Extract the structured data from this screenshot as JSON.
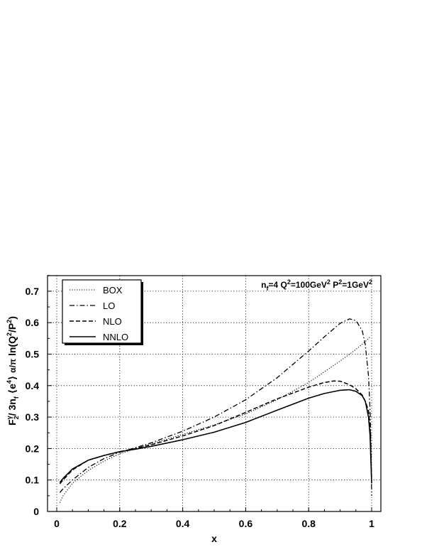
{
  "chart_data": {
    "type": "line",
    "xlabel": "x",
    "ylabel": "F₂^γ / 3n_f ⟨e⁴⟩ (α/π) ln(Q²/P²)",
    "annotation": "n_f=4 Q²=100GeV² P²=1GeV²",
    "xlim": [
      0,
      1
    ],
    "ylim": [
      0,
      0.75
    ],
    "x_ticks": [
      "0",
      "0.2",
      "0.4",
      "0.6",
      "0.8",
      "1"
    ],
    "y_ticks": [
      "0",
      "0.1",
      "0.2",
      "0.3",
      "0.4",
      "0.5",
      "0.6",
      "0.7"
    ],
    "grid": true,
    "legend_position": "top-left",
    "series": [
      {
        "name": "BOX",
        "style": "dotted",
        "x": [
          0.01,
          0.02,
          0.05,
          0.1,
          0.15,
          0.2,
          0.25,
          0.3,
          0.4,
          0.5,
          0.6,
          0.7,
          0.8,
          0.9,
          0.95,
          0.98,
          0.99,
          0.995
        ],
        "y": [
          0.028,
          0.05,
          0.09,
          0.13,
          0.16,
          0.183,
          0.2,
          0.215,
          0.245,
          0.275,
          0.31,
          0.355,
          0.41,
          0.478,
          0.515,
          0.54,
          0.55,
          0.555
        ]
      },
      {
        "name": "LO",
        "style": "dash-dot",
        "x": [
          0.01,
          0.02,
          0.05,
          0.1,
          0.15,
          0.2,
          0.25,
          0.3,
          0.4,
          0.5,
          0.6,
          0.7,
          0.8,
          0.85,
          0.9,
          0.93,
          0.95,
          0.97,
          0.98,
          0.99,
          0.995,
          0.998,
          1.0
        ],
        "y": [
          0.06,
          0.072,
          0.1,
          0.14,
          0.168,
          0.188,
          0.203,
          0.218,
          0.255,
          0.3,
          0.355,
          0.425,
          0.51,
          0.555,
          0.598,
          0.612,
          0.607,
          0.575,
          0.53,
          0.43,
          0.32,
          0.2,
          0.05
        ]
      },
      {
        "name": "NLO",
        "style": "dashed",
        "x": [
          0.01,
          0.02,
          0.05,
          0.1,
          0.15,
          0.2,
          0.25,
          0.3,
          0.4,
          0.5,
          0.6,
          0.7,
          0.8,
          0.85,
          0.88,
          0.9,
          0.93,
          0.95,
          0.97,
          0.98,
          0.99,
          0.995,
          1.0
        ],
        "y": [
          0.088,
          0.1,
          0.132,
          0.163,
          0.178,
          0.19,
          0.2,
          0.212,
          0.24,
          0.273,
          0.315,
          0.358,
          0.395,
          0.41,
          0.415,
          0.414,
          0.403,
          0.39,
          0.37,
          0.35,
          0.32,
          0.27,
          0.1
        ]
      },
      {
        "name": "NNLO",
        "style": "solid",
        "x": [
          0.01,
          0.02,
          0.05,
          0.1,
          0.15,
          0.2,
          0.25,
          0.3,
          0.4,
          0.5,
          0.6,
          0.7,
          0.8,
          0.85,
          0.9,
          0.93,
          0.95,
          0.97,
          0.98,
          0.99,
          0.995,
          1.0
        ],
        "y": [
          0.092,
          0.105,
          0.135,
          0.163,
          0.178,
          0.19,
          0.198,
          0.207,
          0.228,
          0.252,
          0.283,
          0.322,
          0.36,
          0.375,
          0.385,
          0.387,
          0.382,
          0.368,
          0.35,
          0.3,
          0.24,
          0.09
        ]
      }
    ]
  }
}
